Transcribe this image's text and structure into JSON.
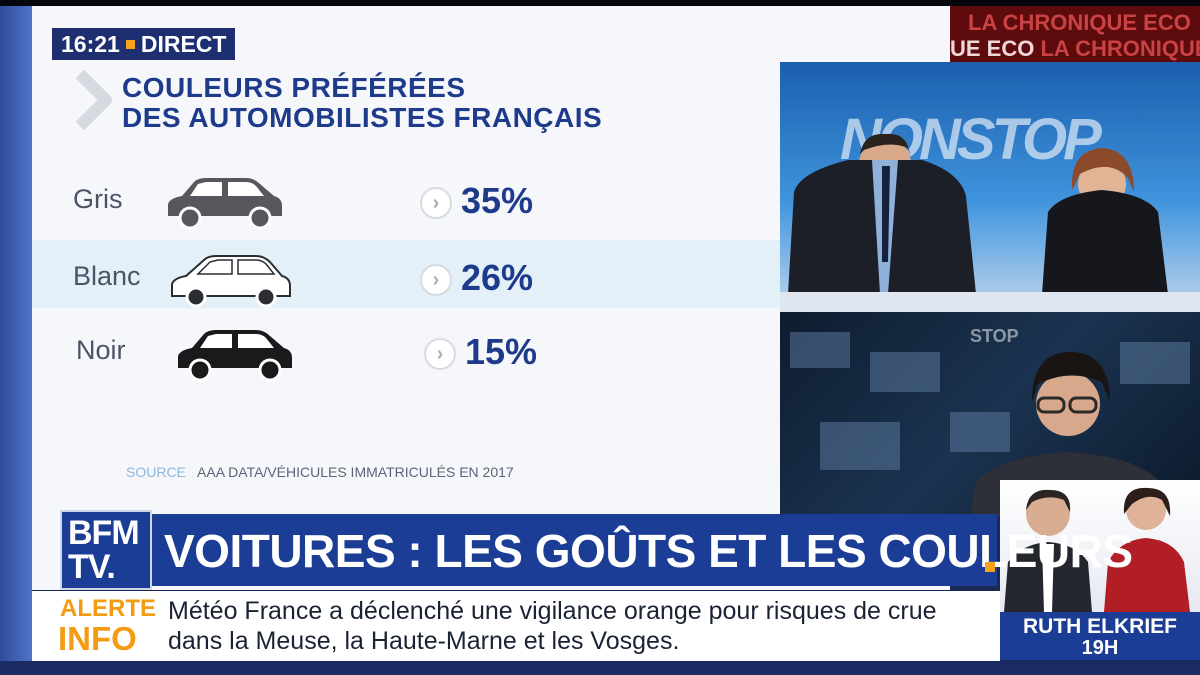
{
  "broadcast": {
    "time": "16:21",
    "live_label": "DIRECT",
    "channel_logo": "BFM TV.",
    "accent_color": "#f7a21b",
    "brand_color": "#1c3d95"
  },
  "infographic": {
    "title_line_1": "COULEURS PRÉFÉRÉES",
    "title_line_2": "DES AUTOMOBILISTES FRANÇAIS",
    "rows": [
      {
        "label": "Gris",
        "percent": "35%",
        "car_icon": "grey-car-icon",
        "car_color": "#56585e"
      },
      {
        "label": "Blanc",
        "percent": "26%",
        "car_icon": "white-car-icon",
        "car_color": "#ffffff"
      },
      {
        "label": "Noir",
        "percent": "15%",
        "car_icon": "black-car-icon",
        "car_color": "#1a1a1d"
      }
    ],
    "source_key": "SOURCE",
    "source_value": "AAA DATA/VÉHICULES IMMATRICULÉS EN 2017"
  },
  "studio": {
    "chronique_line_1": "LA CHRONIQUE ECO",
    "chronique_line_2a": "UE ECO",
    "chronique_line_2b": "LA CHRONIQUE",
    "backdrop_text": "NONSTOP",
    "commentator_backdrop_text": "STOP"
  },
  "headline": {
    "text": "VOITURES : LES GOÛTS ET LES COULEURS"
  },
  "ticker": {
    "label_1": "ALERTE",
    "label_2": "INFO",
    "line_1": "Météo France a déclenché une vigilance orange pour risques de crue",
    "line_2": "dans la Meuse, la Haute-Marne et les Vosges."
  },
  "next_show": {
    "host_name": "RUTH ELKRIEF",
    "time": "19H"
  }
}
